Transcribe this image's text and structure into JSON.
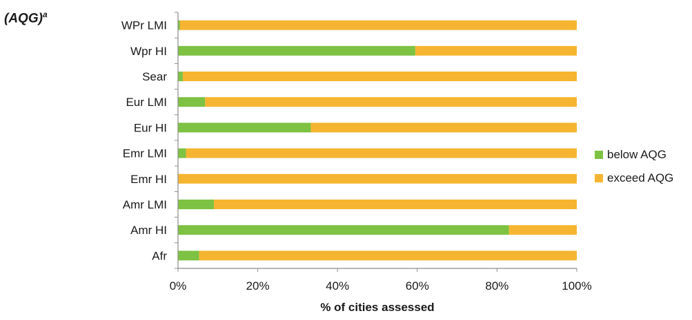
{
  "corner_label": {
    "text": "(AQG)",
    "superscript": "a"
  },
  "colors": {
    "below": "#7dc242",
    "exceed": "#f6b530",
    "axis": "#8c8c8c",
    "text": "#1a1a1a"
  },
  "chart_data": {
    "type": "bar",
    "orientation": "horizontal",
    "stacked": true,
    "categories": [
      "WPr LMI",
      "Wpr HI",
      "Sear",
      "Eur LMI",
      "Eur HI",
      "Emr LMI",
      "Emr HI",
      "Amr LMI",
      "Amr HI",
      "Afr"
    ],
    "series": [
      {
        "name": "below AQG",
        "values": [
          0.5,
          59.5,
          1.2,
          6.8,
          33.3,
          2.0,
          0.0,
          9.0,
          83.0,
          5.3
        ]
      },
      {
        "name": "exceed AQG",
        "values": [
          99.5,
          40.5,
          98.8,
          93.2,
          66.7,
          98.0,
          100.0,
          91.0,
          17.0,
          94.7
        ]
      }
    ],
    "xlabel": "% of cities assessed",
    "xlim": [
      0,
      100
    ],
    "xticks": [
      0,
      20,
      40,
      60,
      80,
      100
    ],
    "xtick_labels": [
      "0%",
      "20%",
      "40%",
      "60%",
      "80%",
      "100%"
    ],
    "grid": false,
    "legend_position": "right"
  }
}
